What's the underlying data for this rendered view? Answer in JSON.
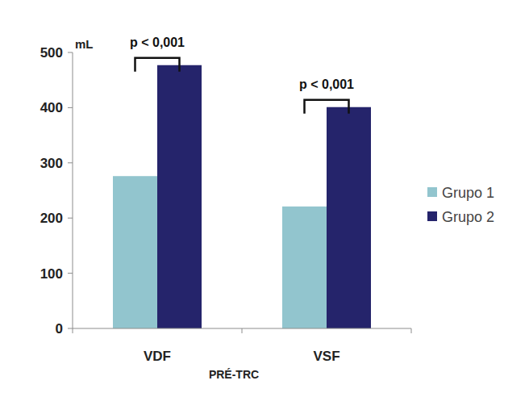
{
  "chart_data": {
    "type": "bar",
    "y_label": "mL",
    "x_label": "PRÉ-TRC",
    "categories": [
      "VDF",
      "VSF"
    ],
    "series": [
      {
        "name": "Grupo 1",
        "color": "#92c5ce",
        "values": [
          276,
          221
        ]
      },
      {
        "name": "Grupo 2",
        "color": "#25246b",
        "values": [
          477,
          401
        ]
      }
    ],
    "ylim": [
      0,
      500
    ],
    "yticks": [
      0,
      100,
      200,
      300,
      400,
      500
    ],
    "grid": false,
    "legend": "right",
    "annotations": [
      {
        "text": "p < 0,001",
        "category": "VDF"
      },
      {
        "text": "p < 0,001",
        "category": "VSF"
      }
    ]
  }
}
